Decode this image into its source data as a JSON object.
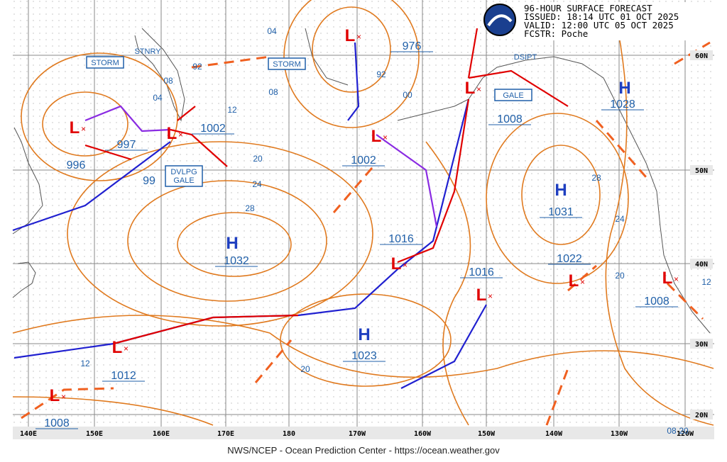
{
  "header": {
    "lines": [
      "96-HOUR SURFACE FORECAST",
      "ISSUED: 18:14 UTC 01 OCT 2025",
      "VALID:  12:00 UTC 05 OCT 2025",
      "FCSTR:  Poche"
    ]
  },
  "map": {
    "longitude_labels": [
      "140E",
      "150E",
      "160E",
      "170E",
      "180",
      "170W",
      "160W",
      "150W",
      "140W",
      "130W",
      "120W"
    ],
    "latitude_labels": [
      "60N",
      "50N",
      "40N",
      "30N",
      "20N"
    ],
    "pressure_systems": [
      {
        "symbol": "L",
        "pressure": 997
      },
      {
        "symbol": "L",
        "pressure": 1002
      },
      {
        "symbol": "L",
        "pressure": 976
      },
      {
        "symbol": "L",
        "pressure": 1002
      },
      {
        "symbol": "L",
        "pressure": 1008
      },
      {
        "symbol": "H",
        "pressure": 1028
      },
      {
        "symbol": "H",
        "pressure": 1031
      },
      {
        "symbol": "H",
        "pressure": 1032
      },
      {
        "symbol": "L",
        "pressure": 1016
      },
      {
        "symbol": "L",
        "pressure": 1016
      },
      {
        "symbol": "L",
        "pressure": 1022
      },
      {
        "symbol": "L",
        "pressure": 1008
      },
      {
        "symbol": "H",
        "pressure": 1023
      },
      {
        "symbol": "L",
        "pressure": 1012
      },
      {
        "symbol": "L",
        "pressure": 1008
      }
    ],
    "isobar_labels": [
      "04",
      "08",
      "04",
      "92",
      "08",
      "12",
      "92",
      "00",
      "20",
      "24",
      "28",
      "28",
      "24",
      "20",
      "12",
      "20",
      "12",
      "99",
      "996",
      "08",
      "20"
    ],
    "annotations": [
      "STORM",
      "STNRY",
      "STORM",
      "DVLPG",
      "GALE",
      "GALE",
      "DSIPT"
    ]
  },
  "footer": "NWS/NCEP - Ocean Prediction Center - https://ocean.weather.gov"
}
